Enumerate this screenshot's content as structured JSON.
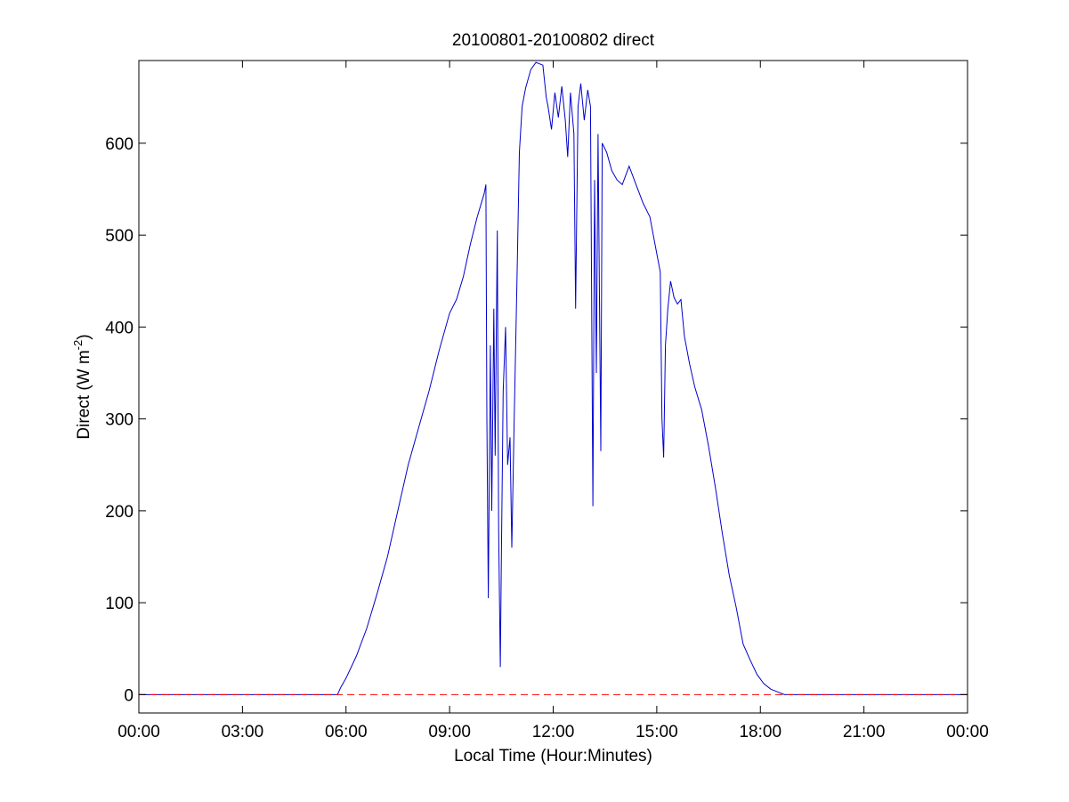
{
  "chart_data": {
    "type": "line",
    "title": "20100801-20100802 direct",
    "xlabel": "Local Time (Hour:Minutes)",
    "ylabel_main": "Direct (W m",
    "ylabel_sup": "-2",
    "ylabel_close": ")",
    "xlim": [
      0,
      24
    ],
    "ylim": [
      -20,
      690
    ],
    "xticks": [
      0,
      3,
      6,
      9,
      12,
      15,
      18,
      21,
      24
    ],
    "xtick_labels": [
      "00:00",
      "03:00",
      "06:00",
      "09:00",
      "12:00",
      "15:00",
      "18:00",
      "21:00",
      "00:00"
    ],
    "yticks": [
      0,
      100,
      200,
      300,
      400,
      500,
      600
    ],
    "ytick_labels": [
      "0",
      "100",
      "200",
      "300",
      "400",
      "500",
      "600"
    ],
    "grid": false,
    "series": [
      {
        "color": "#0000cc",
        "style": "solid",
        "points": [
          [
            0,
            0
          ],
          [
            5.75,
            0
          ],
          [
            5.85,
            8
          ],
          [
            6.0,
            18
          ],
          [
            6.3,
            42
          ],
          [
            6.6,
            72
          ],
          [
            6.9,
            110
          ],
          [
            7.2,
            150
          ],
          [
            7.5,
            200
          ],
          [
            7.8,
            250
          ],
          [
            8.1,
            290
          ],
          [
            8.4,
            330
          ],
          [
            8.7,
            375
          ],
          [
            8.85,
            395
          ],
          [
            9.0,
            415
          ],
          [
            9.2,
            430
          ],
          [
            9.4,
            455
          ],
          [
            9.6,
            490
          ],
          [
            9.8,
            520
          ],
          [
            10.0,
            545
          ],
          [
            10.05,
            555
          ],
          [
            10.08,
            300
          ],
          [
            10.12,
            105
          ],
          [
            10.18,
            380
          ],
          [
            10.22,
            200
          ],
          [
            10.28,
            420
          ],
          [
            10.32,
            260
          ],
          [
            10.38,
            505
          ],
          [
            10.42,
            180
          ],
          [
            10.47,
            30
          ],
          [
            10.5,
            150
          ],
          [
            10.55,
            330
          ],
          [
            10.62,
            400
          ],
          [
            10.68,
            250
          ],
          [
            10.75,
            280
          ],
          [
            10.8,
            160
          ],
          [
            10.87,
            300
          ],
          [
            10.95,
            450
          ],
          [
            11.02,
            590
          ],
          [
            11.1,
            640
          ],
          [
            11.2,
            660
          ],
          [
            11.35,
            680
          ],
          [
            11.5,
            688
          ],
          [
            11.7,
            685
          ],
          [
            11.8,
            650
          ],
          [
            11.85,
            640
          ],
          [
            11.95,
            615
          ],
          [
            12.05,
            655
          ],
          [
            12.15,
            628
          ],
          [
            12.25,
            662
          ],
          [
            12.35,
            625
          ],
          [
            12.42,
            585
          ],
          [
            12.5,
            655
          ],
          [
            12.6,
            610
          ],
          [
            12.65,
            420
          ],
          [
            12.72,
            640
          ],
          [
            12.8,
            665
          ],
          [
            12.9,
            625
          ],
          [
            13.0,
            658
          ],
          [
            13.08,
            640
          ],
          [
            13.15,
            205
          ],
          [
            13.2,
            560
          ],
          [
            13.25,
            350
          ],
          [
            13.3,
            610
          ],
          [
            13.38,
            265
          ],
          [
            13.42,
            600
          ],
          [
            13.55,
            590
          ],
          [
            13.7,
            570
          ],
          [
            13.85,
            560
          ],
          [
            14.0,
            555
          ],
          [
            14.2,
            575
          ],
          [
            14.4,
            555
          ],
          [
            14.6,
            535
          ],
          [
            14.8,
            520
          ],
          [
            14.95,
            490
          ],
          [
            15.1,
            460
          ],
          [
            15.15,
            300
          ],
          [
            15.2,
            258
          ],
          [
            15.25,
            380
          ],
          [
            15.32,
            420
          ],
          [
            15.4,
            450
          ],
          [
            15.5,
            432
          ],
          [
            15.6,
            425
          ],
          [
            15.7,
            430
          ],
          [
            15.8,
            390
          ],
          [
            15.95,
            360
          ],
          [
            16.1,
            335
          ],
          [
            16.3,
            310
          ],
          [
            16.5,
            270
          ],
          [
            16.7,
            225
          ],
          [
            16.9,
            175
          ],
          [
            17.1,
            130
          ],
          [
            17.3,
            95
          ],
          [
            17.5,
            55
          ],
          [
            17.7,
            38
          ],
          [
            17.9,
            22
          ],
          [
            18.1,
            12
          ],
          [
            18.3,
            6
          ],
          [
            18.5,
            3
          ],
          [
            18.7,
            0
          ],
          [
            24,
            0
          ]
        ]
      },
      {
        "color": "#ff0000",
        "style": "dashed",
        "points": [
          [
            0,
            0
          ],
          [
            24,
            0
          ]
        ]
      }
    ]
  }
}
